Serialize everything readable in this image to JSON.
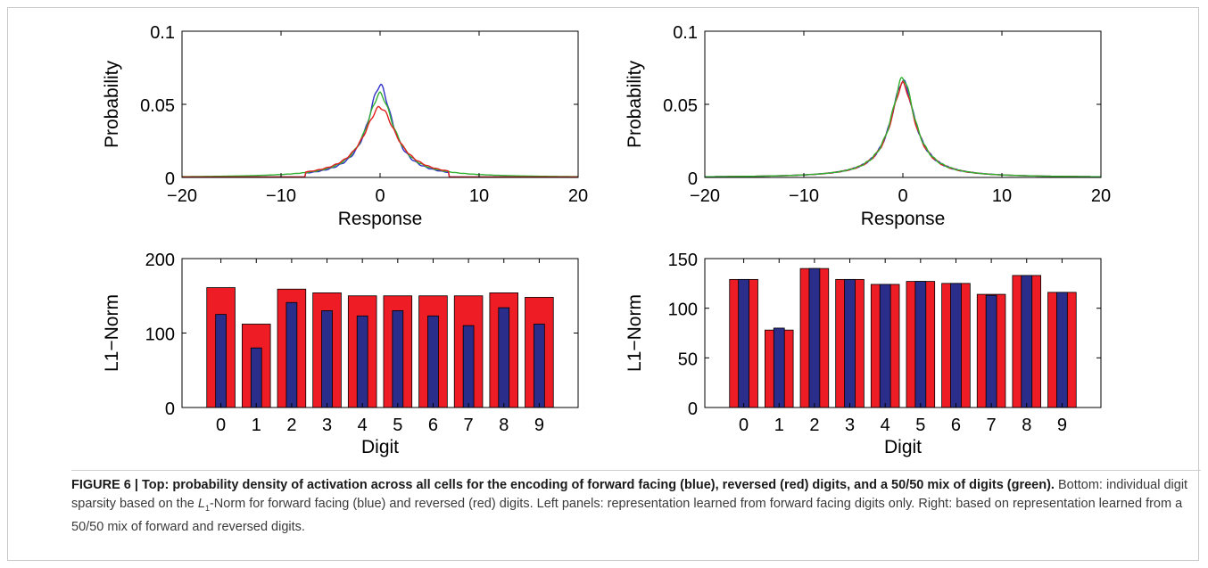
{
  "colors": {
    "blue": "#3030c8",
    "red": "#e02020",
    "green": "#30b030",
    "bar_red": "#ee1c24",
    "bar_blue": "#2a2e8a"
  },
  "chart_data": [
    {
      "type": "line",
      "xlabel": "Response",
      "ylabel": "Probability",
      "xlim": [
        -20,
        20
      ],
      "ylim": [
        0,
        0.1
      ],
      "xticks": [
        "−20",
        "−10",
        "0",
        "10",
        "20"
      ],
      "yticks": [
        "0",
        "0.05",
        "0.1"
      ],
      "grid": false,
      "series": [
        {
          "color": "blue",
          "peak": 0.063,
          "width": 1.55,
          "support": [
            -7.5,
            7.0
          ]
        },
        {
          "color": "green",
          "peak": 0.057,
          "width": 1.75,
          "support": [
            -20,
            20
          ]
        },
        {
          "color": "red",
          "peak": 0.048,
          "width": 2.05,
          "support": [
            -7.5,
            7.0
          ]
        }
      ]
    },
    {
      "type": "line",
      "xlabel": "Response",
      "ylabel": "Probability",
      "xlim": [
        -20,
        20
      ],
      "ylim": [
        0,
        0.1
      ],
      "xticks": [
        "−20",
        "−10",
        "0",
        "10",
        "20"
      ],
      "yticks": [
        "0",
        "0.05",
        "0.1"
      ],
      "grid": false,
      "series": [
        {
          "color": "blue",
          "peak": 0.066,
          "width": 1.5,
          "support": [
            -20,
            20
          ]
        },
        {
          "color": "red",
          "peak": 0.064,
          "width": 1.52,
          "support": [
            -20,
            20
          ]
        },
        {
          "color": "green",
          "peak": 0.068,
          "width": 1.48,
          "support": [
            -20,
            20
          ]
        }
      ]
    },
    {
      "type": "bar",
      "xlabel": "Digit",
      "ylabel": "L1−Norm",
      "categories": [
        "0",
        "1",
        "2",
        "3",
        "4",
        "5",
        "6",
        "7",
        "8",
        "9"
      ],
      "ylim": [
        0,
        200
      ],
      "yticks": [
        "0",
        "100",
        "200"
      ],
      "series": [
        {
          "color": "red",
          "values": [
            161,
            112,
            159,
            154,
            150,
            150,
            150,
            150,
            154,
            148
          ]
        },
        {
          "color": "blue",
          "values": [
            125,
            80,
            141,
            130,
            123,
            130,
            123,
            110,
            134,
            112
          ]
        }
      ]
    },
    {
      "type": "bar",
      "xlabel": "Digit",
      "ylabel": "L1−Norm",
      "categories": [
        "0",
        "1",
        "2",
        "3",
        "4",
        "5",
        "6",
        "7",
        "8",
        "9"
      ],
      "ylim": [
        0,
        150
      ],
      "yticks": [
        "0",
        "50",
        "100",
        "150"
      ],
      "series": [
        {
          "color": "red",
          "values": [
            129,
            78,
            140,
            129,
            124,
            127,
            125,
            114,
            133,
            116
          ]
        },
        {
          "color": "blue",
          "values": [
            129,
            80,
            140,
            129,
            124,
            127,
            125,
            113,
            133,
            116
          ]
        }
      ]
    }
  ],
  "caption": {
    "label": "FIGURE 6 | Top: probability density of activation across all cells for the encoding of forward facing (blue), reversed (red) digits, and a 50/50 mix of digits (green).",
    "body_before": " Bottom: individual digit sparsity based on the ",
    "norm_letter": "L",
    "norm_sub": "1",
    "body_after": "-Norm for forward facing (blue) and reversed (red) digits. Left panels: representation learned from forward facing digits only. Right: based on representation learned from a 50/50 mix of forward and reversed digits."
  }
}
